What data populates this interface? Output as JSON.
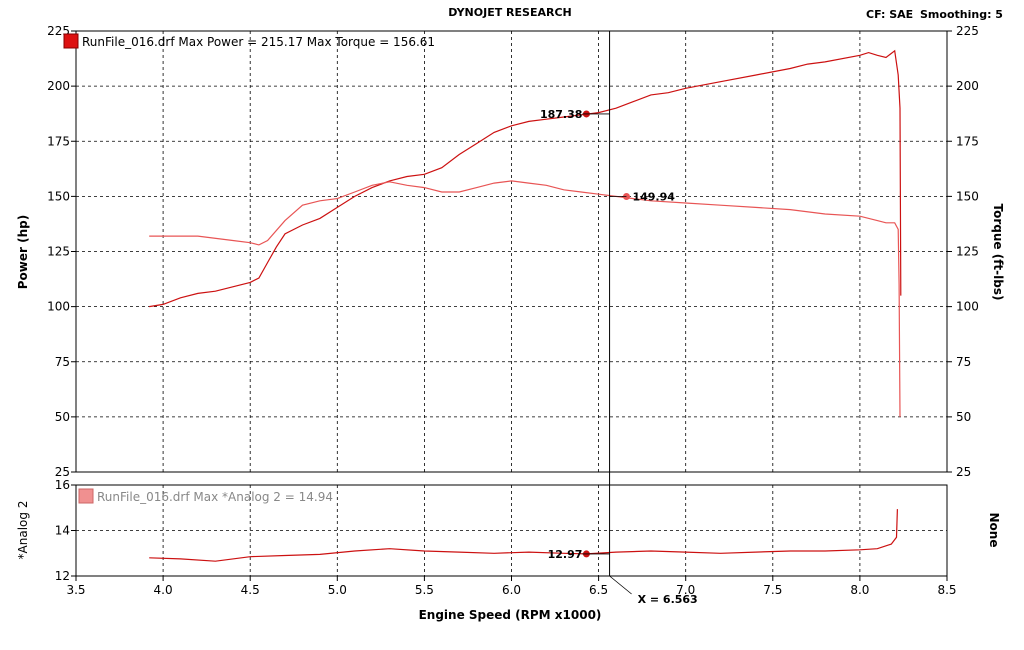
{
  "header": {
    "title": "DYNOJET RESEARCH",
    "cf_label": "CF: SAE",
    "smoothing_label": "Smoothing: 5"
  },
  "colors": {
    "power": "#cc1111",
    "torque": "#e85555",
    "afr": "#cc1111",
    "grid": "#000000",
    "panel_bg": "#ffffff",
    "cursor": "#000000"
  },
  "chart_data": [
    {
      "type": "line",
      "panel": "main",
      "title": "",
      "legend_text": "RunFile_016.drf Max Power = 215.17 Max Torque = 156.61",
      "xlabel": "Engine Speed (RPM x1000)",
      "ylabel_left": "Power (hp)",
      "ylabel_right": "Torque (ft-lbs)",
      "xlim": [
        3.5,
        8.5
      ],
      "ylim": [
        25,
        225
      ],
      "xticks": [
        "3.5",
        "4.0",
        "4.5",
        "5.0",
        "5.5",
        "6.0",
        "6.5",
        "7.0",
        "7.5",
        "8.0",
        "8.5"
      ],
      "yticks": [
        "25",
        "50",
        "75",
        "100",
        "125",
        "150",
        "175",
        "200",
        "225"
      ],
      "grid": true,
      "series": [
        {
          "name": "Power",
          "color": "#cc1111",
          "points": [
            [
              3.92,
              100
            ],
            [
              4.0,
              101
            ],
            [
              4.1,
              104
            ],
            [
              4.2,
              106
            ],
            [
              4.3,
              107
            ],
            [
              4.4,
              109
            ],
            [
              4.5,
              111
            ],
            [
              4.55,
              113
            ],
            [
              4.6,
              120
            ],
            [
              4.65,
              127
            ],
            [
              4.7,
              133
            ],
            [
              4.8,
              137
            ],
            [
              4.9,
              140
            ],
            [
              5.0,
              145
            ],
            [
              5.1,
              150
            ],
            [
              5.2,
              154
            ],
            [
              5.3,
              157
            ],
            [
              5.4,
              159
            ],
            [
              5.5,
              160
            ],
            [
              5.6,
              163
            ],
            [
              5.7,
              169
            ],
            [
              5.8,
              174
            ],
            [
              5.9,
              179
            ],
            [
              6.0,
              182
            ],
            [
              6.1,
              184
            ],
            [
              6.2,
              185
            ],
            [
              6.3,
              186
            ],
            [
              6.4,
              187
            ],
            [
              6.5,
              188
            ],
            [
              6.6,
              190
            ],
            [
              6.7,
              193
            ],
            [
              6.8,
              196
            ],
            [
              6.9,
              197
            ],
            [
              7.0,
              199
            ],
            [
              7.2,
              202
            ],
            [
              7.4,
              205
            ],
            [
              7.6,
              208
            ],
            [
              7.7,
              210
            ],
            [
              7.8,
              211
            ],
            [
              8.0,
              214
            ],
            [
              8.05,
              215.2
            ],
            [
              8.1,
              214
            ],
            [
              8.15,
              213
            ],
            [
              8.2,
              216
            ],
            [
              8.22,
              205
            ],
            [
              8.23,
              190
            ],
            [
              8.235,
              105
            ]
          ]
        },
        {
          "name": "Torque",
          "color": "#e85555",
          "points": [
            [
              3.92,
              132
            ],
            [
              4.0,
              132
            ],
            [
              4.2,
              132
            ],
            [
              4.4,
              130
            ],
            [
              4.5,
              129
            ],
            [
              4.55,
              128
            ],
            [
              4.6,
              130
            ],
            [
              4.7,
              139
            ],
            [
              4.8,
              146
            ],
            [
              4.9,
              148
            ],
            [
              5.0,
              149
            ],
            [
              5.1,
              152
            ],
            [
              5.2,
              155
            ],
            [
              5.3,
              156.6
            ],
            [
              5.4,
              155
            ],
            [
              5.5,
              154
            ],
            [
              5.6,
              152
            ],
            [
              5.7,
              152
            ],
            [
              5.8,
              154
            ],
            [
              5.9,
              156
            ],
            [
              6.0,
              157
            ],
            [
              6.1,
              156
            ],
            [
              6.2,
              155
            ],
            [
              6.3,
              153
            ],
            [
              6.4,
              152
            ],
            [
              6.5,
              151
            ],
            [
              6.6,
              150
            ],
            [
              6.7,
              149
            ],
            [
              6.8,
              148
            ],
            [
              7.0,
              147
            ],
            [
              7.2,
              146
            ],
            [
              7.4,
              145
            ],
            [
              7.6,
              144
            ],
            [
              7.8,
              142
            ],
            [
              8.0,
              141
            ],
            [
              8.1,
              139
            ],
            [
              8.15,
              138
            ],
            [
              8.2,
              138
            ],
            [
              8.22,
              135
            ],
            [
              8.225,
              110
            ],
            [
              8.23,
              50
            ]
          ]
        }
      ],
      "cursor_values": [
        {
          "label": "187.38",
          "x": 6.43,
          "y": 187.38,
          "side": "left",
          "series": "Power"
        },
        {
          "label": "149.94",
          "x": 6.66,
          "y": 149.94,
          "side": "right",
          "series": "Torque"
        }
      ]
    },
    {
      "type": "line",
      "panel": "sub",
      "legend_text": "RunFile_016.drf Max *Analog 2 = 14.94",
      "ylabel_left": "*Analog 2",
      "ylabel_right": "None",
      "xlim": [
        3.5,
        8.5
      ],
      "ylim": [
        12,
        16
      ],
      "yticks": [
        "12",
        "14",
        "16"
      ],
      "grid": true,
      "series": [
        {
          "name": "*Analog 2",
          "color": "#cc1111",
          "points": [
            [
              3.92,
              12.8
            ],
            [
              4.1,
              12.75
            ],
            [
              4.3,
              12.65
            ],
            [
              4.5,
              12.85
            ],
            [
              4.7,
              12.9
            ],
            [
              4.9,
              12.95
            ],
            [
              5.1,
              13.1
            ],
            [
              5.3,
              13.2
            ],
            [
              5.5,
              13.1
            ],
            [
              5.7,
              13.05
            ],
            [
              5.9,
              13.0
            ],
            [
              6.1,
              13.05
            ],
            [
              6.3,
              13.0
            ],
            [
              6.43,
              12.97
            ],
            [
              6.6,
              13.05
            ],
            [
              6.8,
              13.1
            ],
            [
              7.0,
              13.05
            ],
            [
              7.2,
              13.0
            ],
            [
              7.4,
              13.05
            ],
            [
              7.6,
              13.1
            ],
            [
              7.8,
              13.1
            ],
            [
              8.0,
              13.15
            ],
            [
              8.1,
              13.2
            ],
            [
              8.18,
              13.4
            ],
            [
              8.21,
              13.7
            ],
            [
              8.215,
              14.94
            ]
          ]
        }
      ],
      "cursor_values": [
        {
          "label": "12.97",
          "x": 6.43,
          "y": 12.97,
          "side": "left",
          "series": "*Analog 2"
        }
      ]
    }
  ],
  "cursor": {
    "x": 6.563,
    "label": "X = 6.563"
  }
}
